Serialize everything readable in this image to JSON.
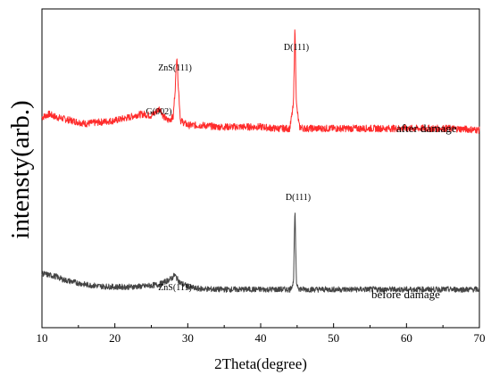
{
  "chart_data": {
    "type": "line",
    "xlabel": "2Theta(degree)",
    "ylabel": "intensty(arb.)",
    "xlim": [
      10,
      70
    ],
    "xticks": [
      10,
      20,
      30,
      40,
      50,
      60,
      70
    ],
    "xtick_labels": [
      "10",
      "20",
      "30",
      "40",
      "50",
      "60",
      "70"
    ],
    "ylim": [
      0,
      100
    ],
    "grid": false,
    "series": [
      {
        "name": "after damage",
        "color": "#ff2b2b",
        "x": [
          10,
          11,
          12,
          14,
          16,
          18,
          20,
          22,
          23,
          24,
          25,
          25.8,
          26.2,
          26.6,
          27.2,
          28,
          28.3,
          28.5,
          28.7,
          29,
          30,
          32,
          34,
          36,
          38,
          40,
          42,
          44,
          44.5,
          44.7,
          44.9,
          45.3,
          46,
          48,
          50,
          52,
          55,
          58,
          60,
          62,
          64,
          66,
          68,
          70
        ],
        "y": [
          66,
          67,
          66,
          65,
          64,
          64.5,
          65,
          66,
          66.8,
          67,
          66.5,
          68,
          69,
          66.5,
          65,
          66,
          76,
          86,
          76,
          65,
          63.5,
          63.5,
          63,
          63,
          63,
          63,
          62.5,
          62.5,
          70,
          95,
          70,
          63,
          62.5,
          62.5,
          62.5,
          62.5,
          62.5,
          62.5,
          62.5,
          62.5,
          62.5,
          62.5,
          62.3,
          62
        ]
      },
      {
        "name": "before damage",
        "color": "#444444",
        "x": [
          10,
          11,
          12,
          13,
          14,
          15,
          16,
          18,
          20,
          22,
          24,
          26,
          27,
          27.8,
          28.2,
          28.5,
          29,
          30,
          31,
          32,
          34,
          36,
          38,
          40,
          42,
          44,
          44.5,
          44.7,
          44.9,
          45.3,
          46,
          48,
          50,
          52,
          55,
          58,
          60,
          62,
          64,
          66,
          68,
          70
        ],
        "y": [
          17,
          16.5,
          16,
          15,
          14.5,
          14,
          13.5,
          13,
          12.8,
          12.8,
          13,
          13.5,
          14.5,
          15.5,
          16.5,
          15.5,
          14,
          13,
          12.3,
          12.2,
          12,
          12,
          12,
          12,
          12,
          12,
          14,
          37.5,
          14,
          12.2,
          12,
          12,
          12,
          12,
          12,
          12,
          12,
          12,
          12,
          12,
          12,
          12
        ]
      }
    ],
    "annotations": {
      "after_d111": "D(111)",
      "after_zns111": "ZnS(111)",
      "after_g002": "G(002)",
      "before_d111": "D(111)",
      "before_zns111": "ZnS(111)"
    }
  }
}
